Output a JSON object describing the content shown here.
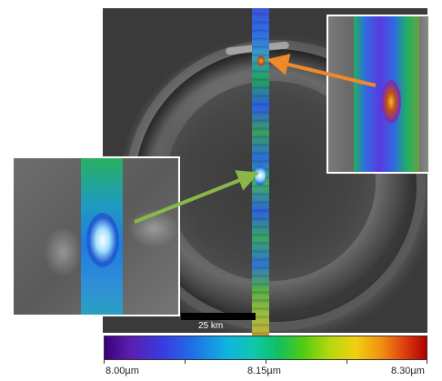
{
  "figure": {
    "scale_bar": {
      "label": "25 km"
    },
    "colorbar": {
      "tick_labels": [
        "8.00µm",
        "8.15µm",
        "8.30µm"
      ],
      "colors": [
        "#3a007a",
        "#3a3ae0",
        "#10b4e0",
        "#10c060",
        "#b8d810",
        "#f0d010",
        "#e04010",
        "#b00000"
      ]
    },
    "arrows": [
      {
        "color": "#f0882c",
        "points_to": "upper strip feature"
      },
      {
        "color": "#8ab848",
        "points_to": "central strip feature"
      }
    ]
  }
}
